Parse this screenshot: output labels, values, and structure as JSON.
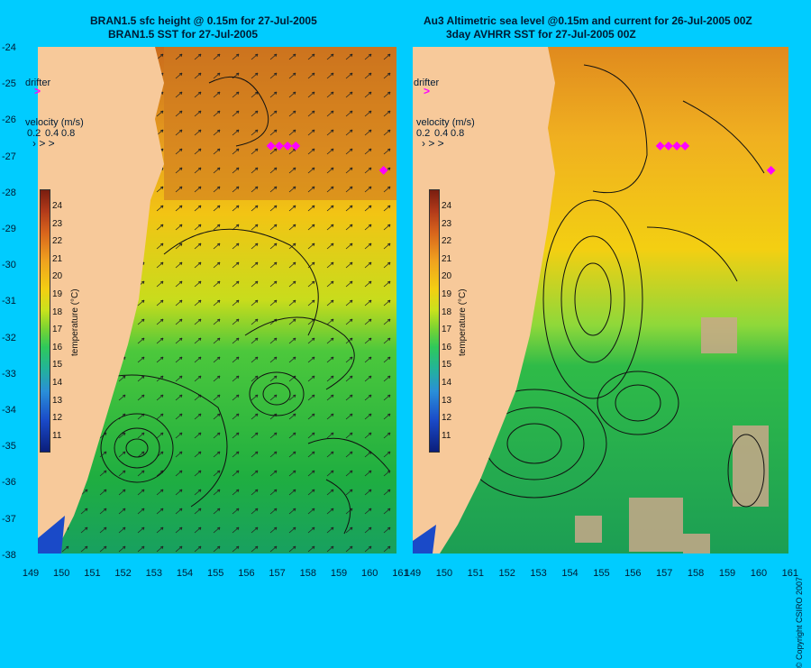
{
  "left": {
    "title1": "BRAN1.5 sfc height @ 0.15m for 27-Jul-2005",
    "title2": "BRAN1.5 SST for 27-Jul-2005"
  },
  "right": {
    "title1": "Au3 Altimetric sea level  @0.15m and current for 26-Jul-2005 00Z",
    "title2": "3day AVHRR SST for 27-Jul-2005 00Z"
  },
  "legend": {
    "drifter": "drifter",
    "velocity": "velocity (m/s)",
    "speeds": [
      "0.2",
      "0.4",
      "0.8"
    ]
  },
  "colorbar": {
    "title": "temperature (°C)",
    "ticks": [
      "24",
      "23",
      "22",
      "21",
      "20",
      "19",
      "18",
      "17",
      "16",
      "15",
      "14",
      "13",
      "12",
      "11"
    ]
  },
  "lat_ticks": [
    "-24",
    "-25",
    "-26",
    "-27",
    "-28",
    "-29",
    "-30",
    "-31",
    "-32",
    "-33",
    "-34",
    "-35",
    "-36",
    "-37",
    "-38"
  ],
  "lon_ticks": [
    "149",
    "150",
    "151",
    "152",
    "153",
    "154",
    "155",
    "156",
    "157",
    "158",
    "159",
    "160",
    "161"
  ],
  "copyright": "© Copyright CSIRO 2007",
  "colors": {
    "background": "#00ccff",
    "land": "#f7c99a",
    "drifter": "#ff00ff"
  }
}
